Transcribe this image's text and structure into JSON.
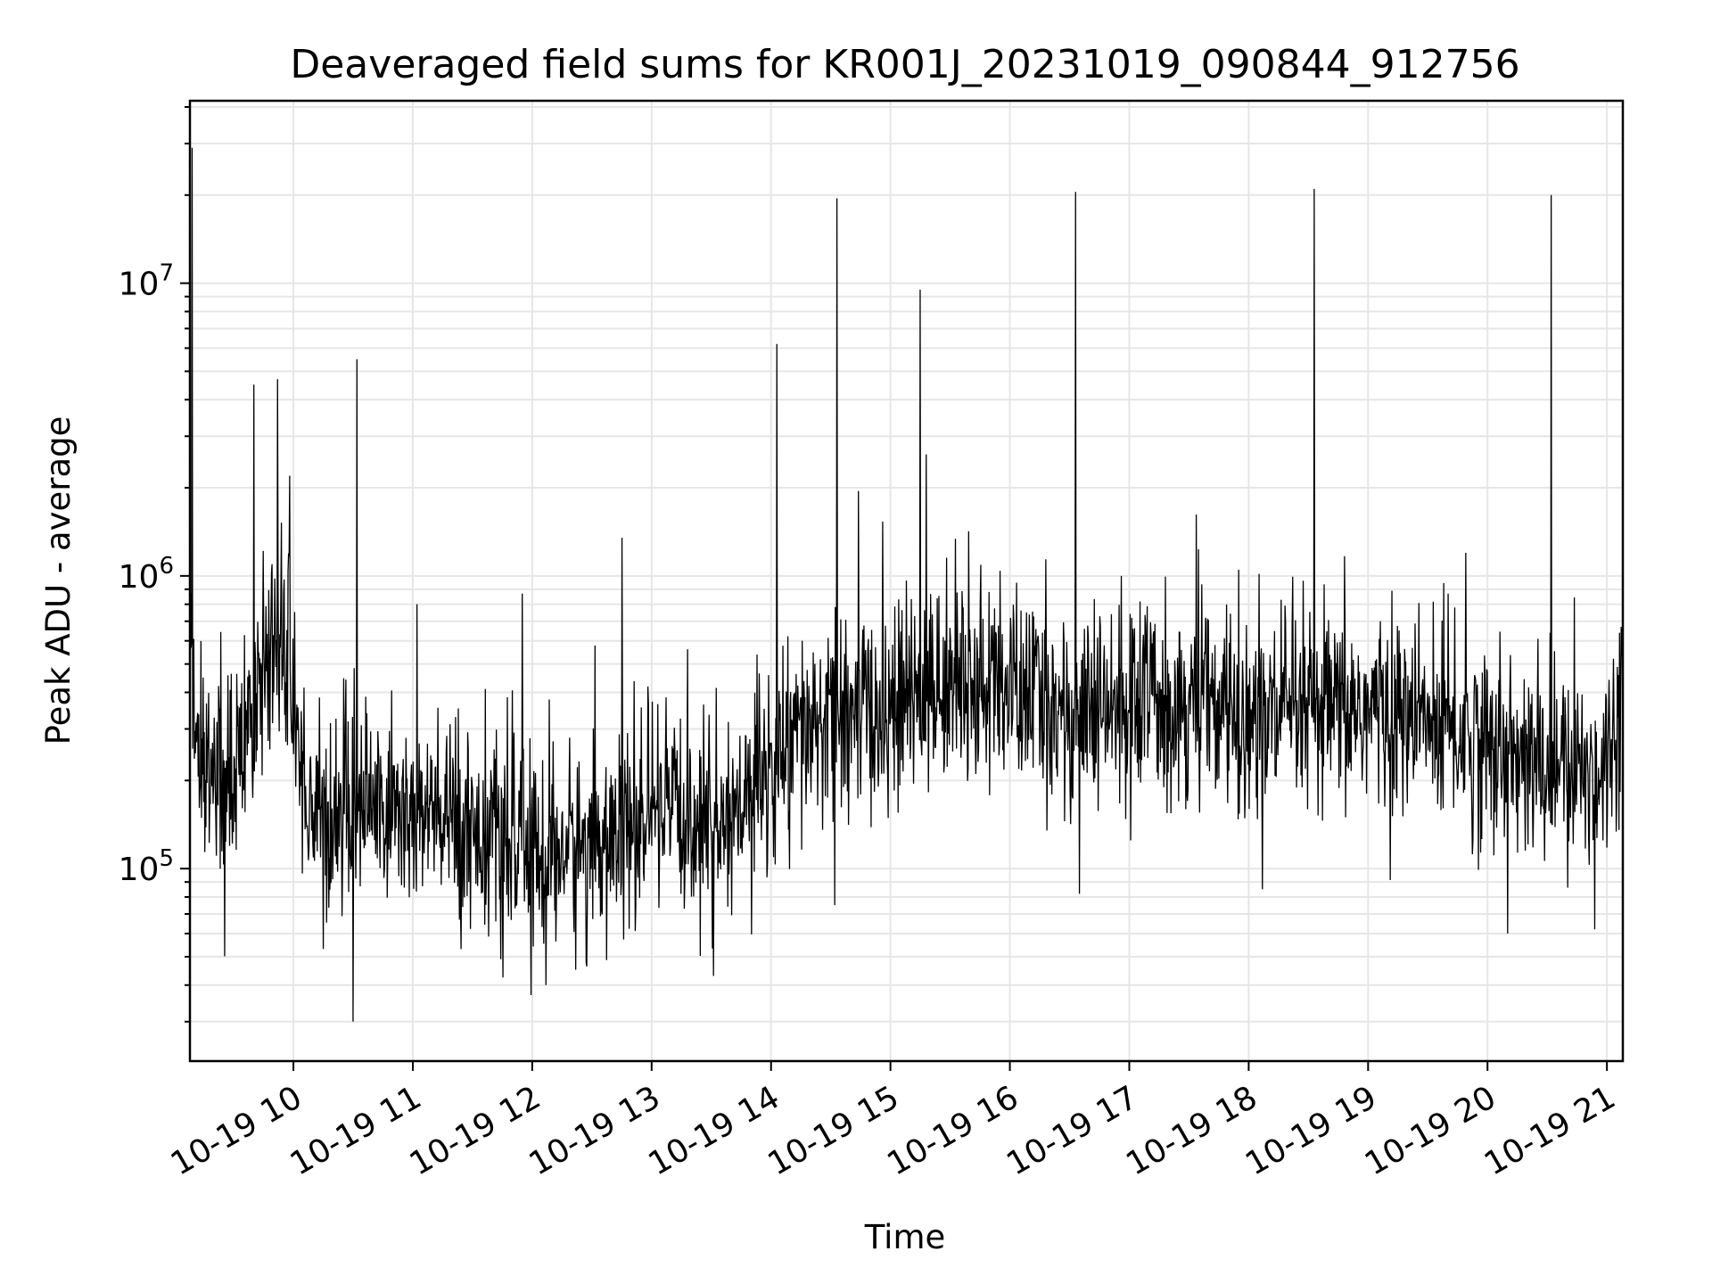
{
  "chart_data": {
    "type": "line",
    "title": "Deaveraged field sums for KR001J_20231019_090844_912756",
    "xlabel": "Time",
    "ylabel": "Peak ADU - average",
    "yscale": "log",
    "ylim": [
      22000,
      42000000
    ],
    "xlim": [
      "2023-10-19 09:08",
      "2023-10-19 21:08"
    ],
    "grid": true,
    "line_color": "#000000",
    "x_ticks": [
      {
        "x": "2023-10-19 10:00",
        "label": "10-19 10"
      },
      {
        "x": "2023-10-19 11:00",
        "label": "10-19 11"
      },
      {
        "x": "2023-10-19 12:00",
        "label": "10-19 12"
      },
      {
        "x": "2023-10-19 13:00",
        "label": "10-19 13"
      },
      {
        "x": "2023-10-19 14:00",
        "label": "10-19 14"
      },
      {
        "x": "2023-10-19 15:00",
        "label": "10-19 15"
      },
      {
        "x": "2023-10-19 16:00",
        "label": "10-19 16"
      },
      {
        "x": "2023-10-19 17:00",
        "label": "10-19 17"
      },
      {
        "x": "2023-10-19 18:00",
        "label": "10-19 18"
      },
      {
        "x": "2023-10-19 19:00",
        "label": "10-19 19"
      },
      {
        "x": "2023-10-19 20:00",
        "label": "10-19 20"
      },
      {
        "x": "2023-10-19 21:00",
        "label": "10-19 21"
      }
    ],
    "y_ticks": [
      {
        "value": 100000,
        "base": "10",
        "exp": "5"
      },
      {
        "value": 1000000,
        "base": "10",
        "exp": "6"
      },
      {
        "value": 10000000,
        "base": "10",
        "exp": "7"
      }
    ],
    "series": [
      {
        "x": [
          "2023-10-19 09:08",
          "2023-10-19 09:15",
          "2023-10-19 09:25",
          "2023-10-19 09:35",
          "2023-10-19 09:42",
          "2023-10-19 09:50",
          "2023-10-19 09:55",
          "2023-10-19 10:03",
          "2023-10-19 10:10",
          "2023-10-19 10:20",
          "2023-10-19 10:30",
          "2023-10-19 10:45",
          "2023-10-19 11:00",
          "2023-10-19 11:15",
          "2023-10-19 11:30",
          "2023-10-19 11:45",
          "2023-10-19 12:00",
          "2023-10-19 12:15",
          "2023-10-19 12:30",
          "2023-10-19 12:45",
          "2023-10-19 13:00",
          "2023-10-19 13:15",
          "2023-10-19 13:30",
          "2023-10-19 13:45",
          "2023-10-19 14:00",
          "2023-10-19 14:15",
          "2023-10-19 14:30",
          "2023-10-19 14:45",
          "2023-10-19 15:00",
          "2023-10-19 15:15",
          "2023-10-19 15:30",
          "2023-10-19 15:45",
          "2023-10-19 16:00",
          "2023-10-19 16:15",
          "2023-10-19 16:30",
          "2023-10-19 16:45",
          "2023-10-19 17:00",
          "2023-10-19 17:15",
          "2023-10-19 17:30",
          "2023-10-19 17:45",
          "2023-10-19 18:00",
          "2023-10-19 18:15",
          "2023-10-19 18:30",
          "2023-10-19 18:45",
          "2023-10-19 19:00",
          "2023-10-19 19:15",
          "2023-10-19 19:30",
          "2023-10-19 19:45",
          "2023-10-19 20:00",
          "2023-10-19 20:15",
          "2023-10-19 20:30",
          "2023-10-19 20:45",
          "2023-10-19 21:00",
          "2023-10-19 21:08"
        ],
        "y": [
          400000,
          250000,
          200000,
          210000,
          450000,
          600000,
          500000,
          250000,
          150000,
          140000,
          170000,
          160000,
          150000,
          145000,
          140000,
          120000,
          110000,
          115000,
          120000,
          130000,
          140000,
          150000,
          140000,
          160000,
          220000,
          280000,
          320000,
          330000,
          350000,
          380000,
          450000,
          430000,
          400000,
          380000,
          330000,
          330000,
          350000,
          390000,
          370000,
          340000,
          330000,
          320000,
          330000,
          340000,
          350000,
          330000,
          310000,
          290000,
          260000,
          230000,
          220000,
          210000,
          230000,
          450000
        ]
      }
    ],
    "spikes": [
      {
        "x": "2023-10-19 09:09",
        "y": 29000000
      },
      {
        "x": "2023-10-19 09:40",
        "y": 4500000
      },
      {
        "x": "2023-10-19 09:52",
        "y": 4700000
      },
      {
        "x": "2023-10-19 09:58",
        "y": 2200000
      },
      {
        "x": "2023-10-19 10:32",
        "y": 5500000
      },
      {
        "x": "2023-10-19 11:02",
        "y": 800000
      },
      {
        "x": "2023-10-19 11:55",
        "y": 870000
      },
      {
        "x": "2023-10-19 12:45",
        "y": 1350000
      },
      {
        "x": "2023-10-19 14:03",
        "y": 6200000
      },
      {
        "x": "2023-10-19 14:33",
        "y": 19500000
      },
      {
        "x": "2023-10-19 14:44",
        "y": 1950000
      },
      {
        "x": "2023-10-19 15:15",
        "y": 9500000
      },
      {
        "x": "2023-10-19 15:18",
        "y": 2600000
      },
      {
        "x": "2023-10-19 16:33",
        "y": 20500000
      },
      {
        "x": "2023-10-19 16:56",
        "y": 1000000
      },
      {
        "x": "2023-10-19 17:55",
        "y": 1050000
      },
      {
        "x": "2023-10-19 18:33",
        "y": 21000000
      },
      {
        "x": "2023-10-19 19:49",
        "y": 1200000
      },
      {
        "x": "2023-10-19 20:32",
        "y": 20000000
      }
    ],
    "dips": [
      {
        "x": "2023-10-19 10:30",
        "y": 30000
      },
      {
        "x": "2023-10-19 12:07",
        "y": 40000
      },
      {
        "x": "2023-10-19 13:31",
        "y": 43000
      },
      {
        "x": "2023-10-19 14:32",
        "y": 75000
      },
      {
        "x": "2023-10-19 16:35",
        "y": 82000
      },
      {
        "x": "2023-10-19 18:07",
        "y": 85000
      },
      {
        "x": "2023-10-19 20:10",
        "y": 60000
      },
      {
        "x": "2023-10-19 20:54",
        "y": 62000
      }
    ]
  }
}
